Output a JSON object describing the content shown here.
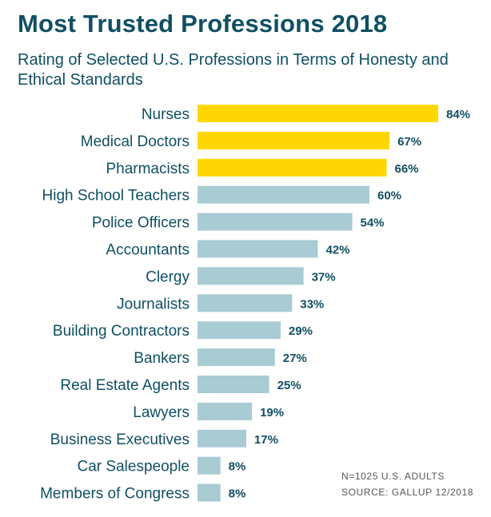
{
  "title": "Most Trusted Professions 2018",
  "subtitle": "Rating of Selected U.S. Professions in Terms of Honesty and Ethical Standards",
  "notes": {
    "sample": "N=1025 U.S. ADULTS",
    "source": "SOURCE: GALLUP 12/2018"
  },
  "colors": {
    "highlight": "#ffd700",
    "default": "#a8cbd4",
    "text": "#0f4f63"
  },
  "chart_data": {
    "type": "bar",
    "orientation": "horizontal",
    "title": "Most Trusted Professions 2018",
    "subtitle": "Rating of Selected U.S. Professions in Terms of Honesty and Ethical Standards",
    "xlabel": "",
    "ylabel": "",
    "xlim": [
      0,
      84
    ],
    "grid": false,
    "unit": "%",
    "categories": [
      "Nurses",
      "Medical Doctors",
      "Pharmacists",
      "High School Teachers",
      "Police Officers",
      "Accountants",
      "Clergy",
      "Journalists",
      "Building Contractors",
      "Bankers",
      "Real Estate Agents",
      "Lawyers",
      "Business Executives",
      "Car Salespeople",
      "Members of Congress"
    ],
    "values": [
      84,
      67,
      66,
      60,
      54,
      42,
      37,
      33,
      29,
      27,
      25,
      19,
      17,
      8,
      8
    ],
    "value_labels": [
      "84%",
      "67%",
      "66%",
      "60%",
      "54%",
      "42%",
      "37%",
      "33%",
      "29%",
      "27%",
      "25%",
      "19%",
      "17%",
      "8%",
      "8%"
    ],
    "highlighted": [
      true,
      true,
      true,
      false,
      false,
      false,
      false,
      false,
      false,
      false,
      false,
      false,
      false,
      false,
      false
    ]
  }
}
